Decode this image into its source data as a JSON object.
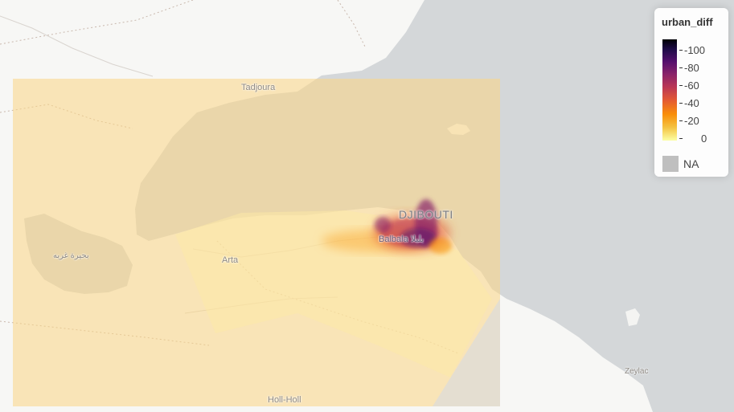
{
  "map": {
    "places": {
      "tadjoura": "Tadjoura",
      "djibouti": "DJIBOUTI",
      "balbala": "Balbala بلبلا",
      "arta": "Arta",
      "lake": "بحيرة غربه",
      "holl_holl": "Holl-Holl",
      "zeylac": "Zeylac"
    }
  },
  "legend": {
    "title": "urban_diff",
    "ticks": [
      "-100",
      "-80",
      "-60",
      "-40",
      "-20",
      "0"
    ],
    "tick_values": [
      -100,
      -80,
      -60,
      -40,
      -20,
      0
    ],
    "na_label": "NA",
    "colorscale": [
      "#000004",
      "#550f6d",
      "#ba3655",
      "#f98e09",
      "#fcffa4"
    ],
    "na_color": "#bfbfbf"
  }
}
